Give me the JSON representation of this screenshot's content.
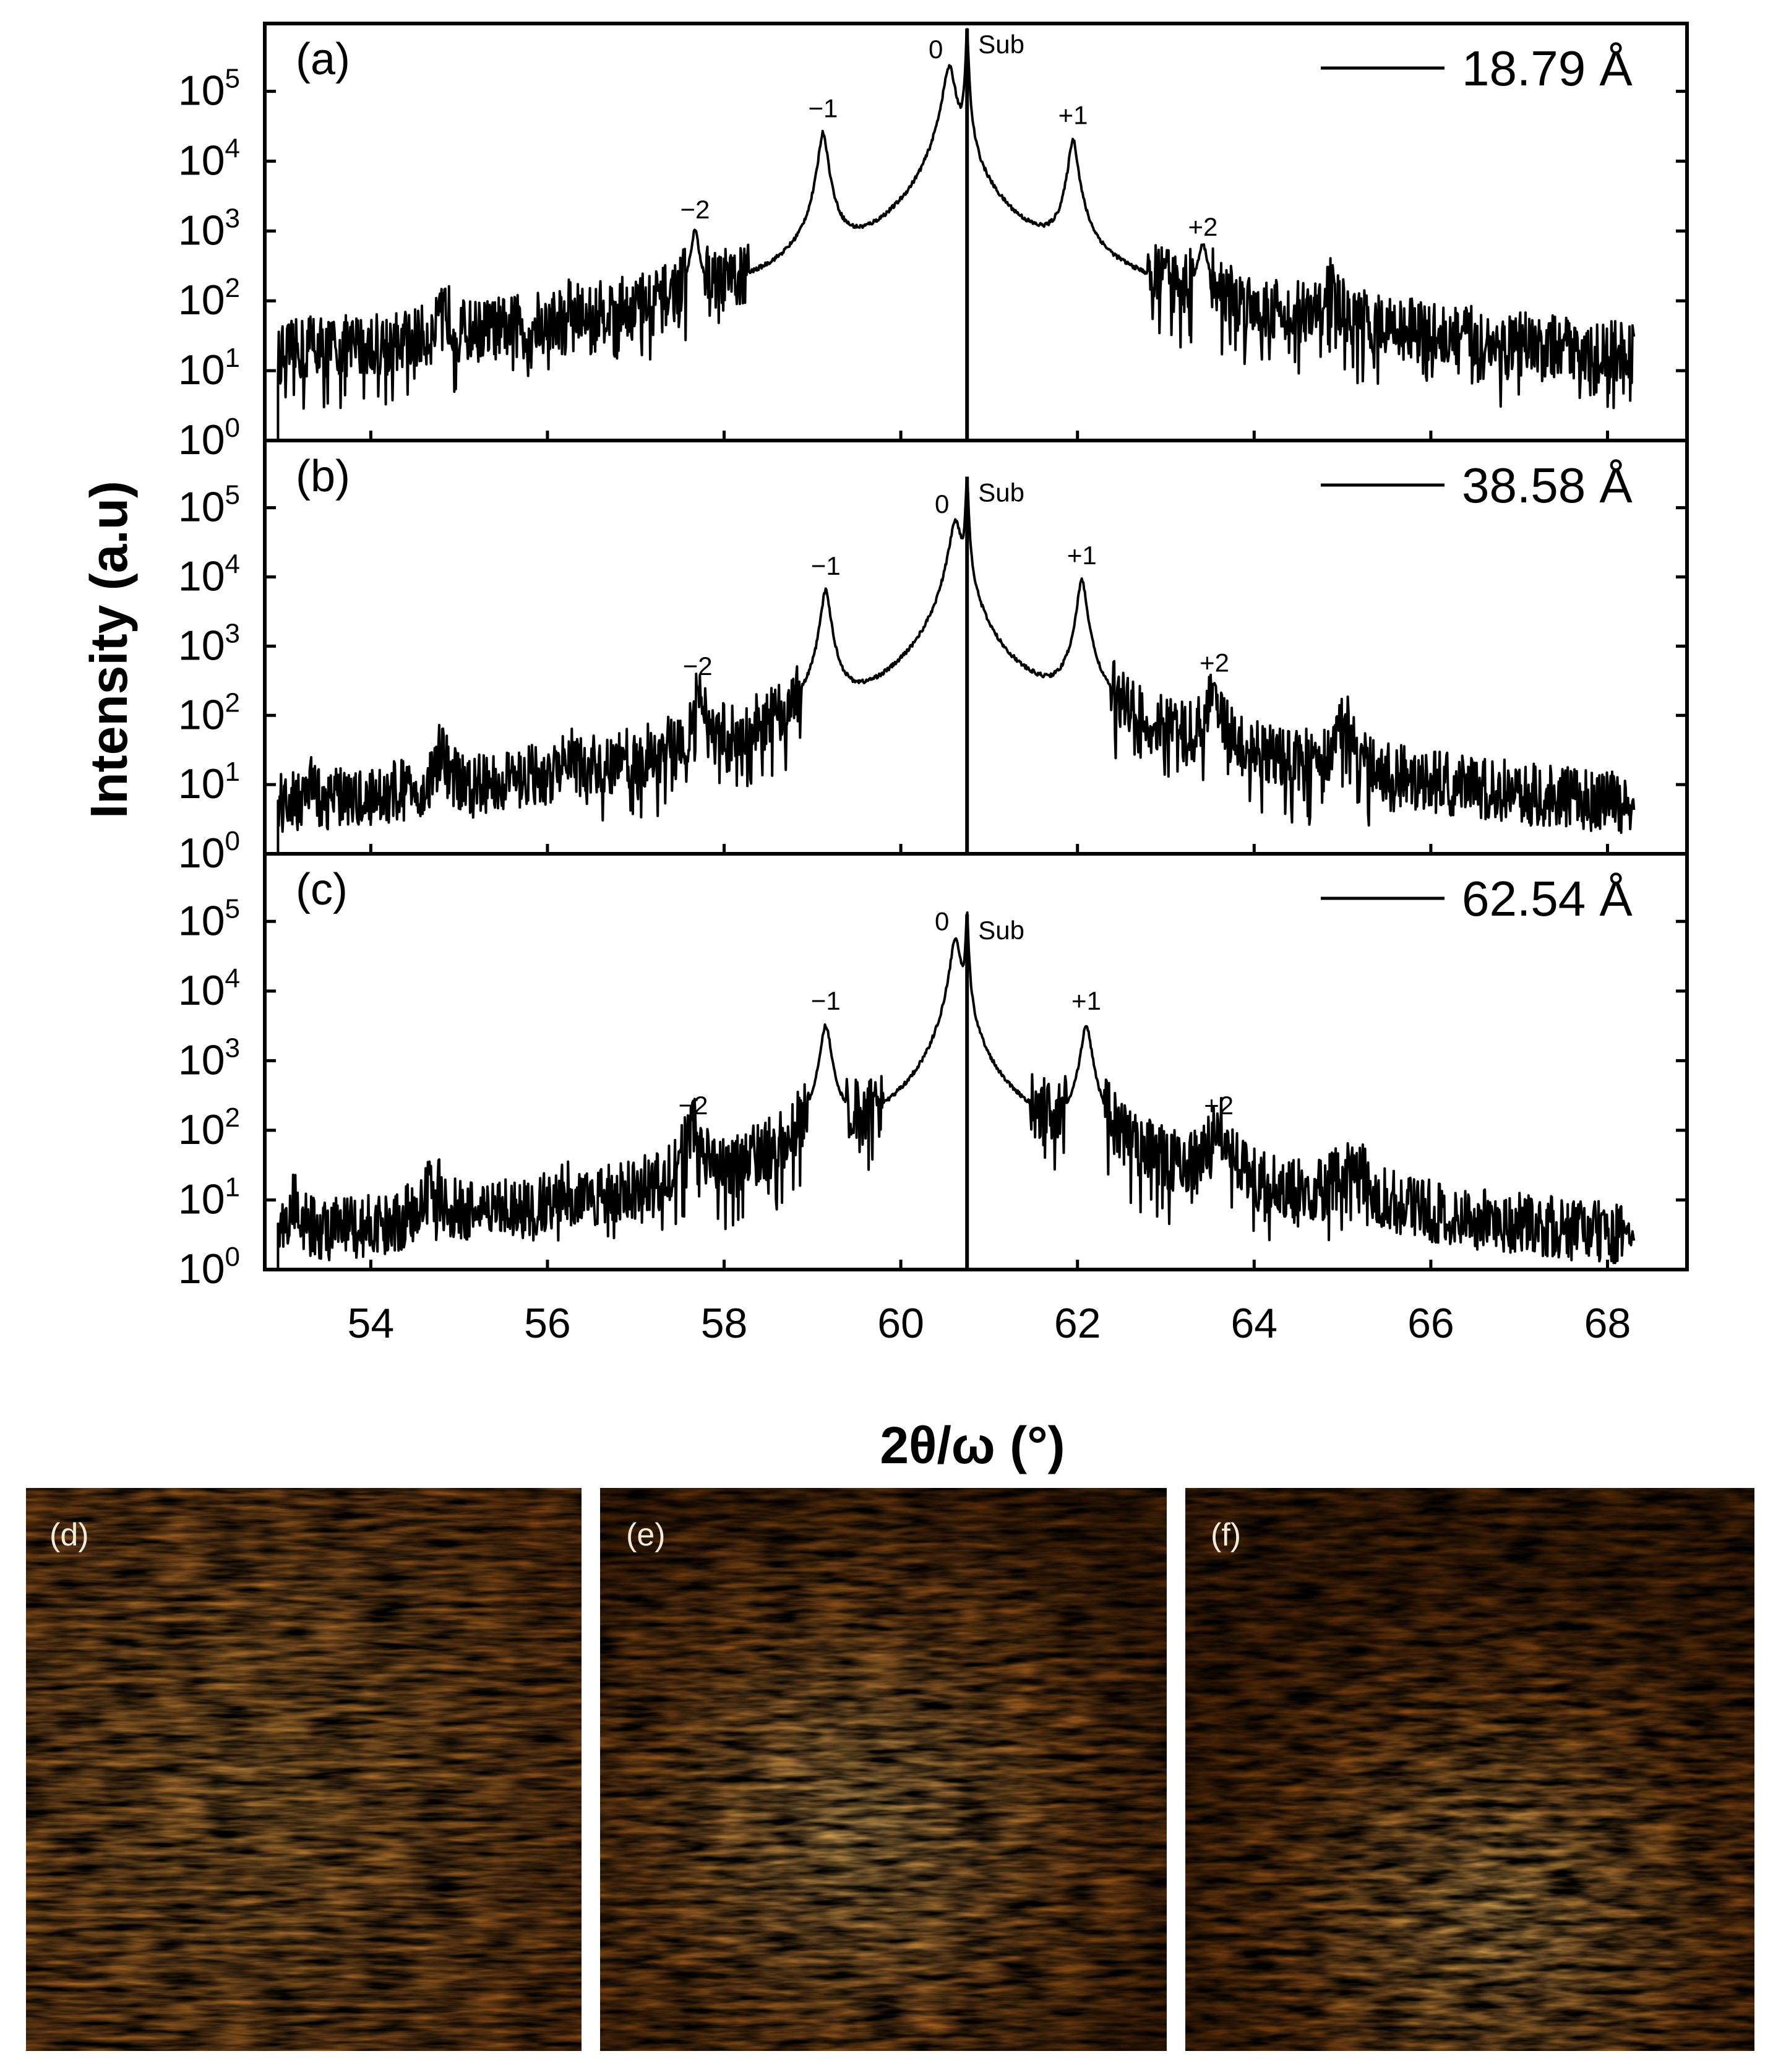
{
  "chart_data": {
    "type": "line",
    "xlabel": "2θ/ω (°)",
    "ylabel": "Intensity (a.u)",
    "xlim": [
      52.8,
      68.9
    ],
    "x_ticks": [
      54,
      56,
      58,
      60,
      62,
      64,
      66,
      68
    ],
    "y_scale": "log",
    "ylim_log10": [
      0,
      5.9
    ],
    "y_tick_exponents": [
      0,
      1,
      2,
      3,
      4,
      5
    ],
    "y_tick_base": "10",
    "substrate_peak_label": "Sub",
    "substrate_position": 60.75,
    "panels": [
      {
        "label": "(a)",
        "legend": "18.79 Å",
        "substrate_intensity_log": 5.9,
        "peaks": [
          {
            "order": "",
            "x": 53.35,
            "log_intensity": 1.0,
            "width": 0.05
          },
          {
            "order": "",
            "x": 54.85,
            "log_intensity": 1.6,
            "width": 0.06
          },
          {
            "order": "",
            "x": 56.25,
            "log_intensity": 1.5,
            "width": 0.04
          },
          {
            "order": "−2",
            "x": 57.67,
            "log_intensity": 2.95,
            "width": 0.04
          },
          {
            "order": "−1",
            "x": 59.12,
            "log_intensity": 4.4,
            "width": 0.045
          },
          {
            "order": "0",
            "x": 60.55,
            "log_intensity": 5.35,
            "width": 0.06
          },
          {
            "order": "+1",
            "x": 61.95,
            "log_intensity": 4.3,
            "width": 0.045
          },
          {
            "order": "+2",
            "x": 63.42,
            "log_intensity": 2.7,
            "width": 0.05
          },
          {
            "order": "",
            "x": 64.88,
            "log_intensity": 2.05,
            "width": 0.06
          }
        ]
      },
      {
        "label": "(b)",
        "legend": "38.58 Å",
        "substrate_intensity_log": 5.45,
        "peaks": [
          {
            "order": "",
            "x": 53.3,
            "log_intensity": 0.65,
            "width": 0.05
          },
          {
            "order": "",
            "x": 54.8,
            "log_intensity": 1.3,
            "width": 0.06
          },
          {
            "order": "",
            "x": 56.25,
            "log_intensity": 1.0,
            "width": 0.04
          },
          {
            "order": "−2",
            "x": 57.7,
            "log_intensity": 2.35,
            "width": 0.045
          },
          {
            "order": "−1",
            "x": 59.15,
            "log_intensity": 3.8,
            "width": 0.045
          },
          {
            "order": "0",
            "x": 60.62,
            "log_intensity": 4.8,
            "width": 0.06
          },
          {
            "order": "+1",
            "x": 62.05,
            "log_intensity": 3.95,
            "width": 0.045
          },
          {
            "order": "+2",
            "x": 63.55,
            "log_intensity": 2.4,
            "width": 0.05
          },
          {
            "order": "",
            "x": 65.02,
            "log_intensity": 1.85,
            "width": 0.07
          }
        ]
      },
      {
        "label": "(c)",
        "legend": "62.54 Å",
        "substrate_intensity_log": 5.1,
        "peaks": [
          {
            "order": "",
            "x": 53.15,
            "log_intensity": 0.85,
            "width": 0.06
          },
          {
            "order": "",
            "x": 54.7,
            "log_intensity": 1.15,
            "width": 0.09
          },
          {
            "order": "",
            "x": 56.2,
            "log_intensity": 0.8,
            "width": 0.05
          },
          {
            "order": "−2",
            "x": 57.65,
            "log_intensity": 2.0,
            "width": 0.07
          },
          {
            "order": "−1",
            "x": 59.15,
            "log_intensity": 3.5,
            "width": 0.05
          },
          {
            "order": "0",
            "x": 60.62,
            "log_intensity": 4.75,
            "width": 0.05
          },
          {
            "order": "+1",
            "x": 62.1,
            "log_intensity": 3.5,
            "width": 0.05
          },
          {
            "order": "+2",
            "x": 63.6,
            "log_intensity": 2.0,
            "width": 0.08
          },
          {
            "order": "",
            "x": 65.1,
            "log_intensity": 1.4,
            "width": 0.14
          }
        ]
      }
    ]
  },
  "afm_images": [
    {
      "label": "(d)"
    },
    {
      "label": "(e)"
    },
    {
      "label": "(f)"
    }
  ],
  "colors": {
    "line": "#000000",
    "afm_dark": "#5a2d08",
    "afm_mid": "#a8651c",
    "afm_light": "#e9c27a"
  }
}
